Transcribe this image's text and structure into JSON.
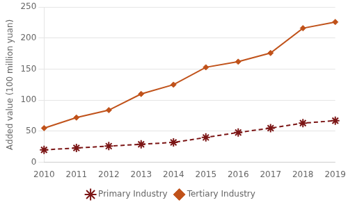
{
  "chart_data": {
    "type": "line",
    "categories": [
      "2010",
      "2011",
      "2012",
      "2013",
      "2014",
      "2015",
      "2016",
      "2017",
      "2018",
      "2019"
    ],
    "series": [
      {
        "name": "Primary Industry",
        "color": "#7B1515",
        "marker": "star",
        "line_style": "dashed",
        "values": [
          20,
          23,
          26,
          29,
          32,
          40,
          48,
          55,
          63,
          67
        ]
      },
      {
        "name": "Tertiary Industry",
        "color": "#C0521A",
        "marker": "diamond",
        "line_style": "solid",
        "values": [
          55,
          72,
          84,
          110,
          125,
          153,
          162,
          176,
          216,
          226
        ]
      }
    ],
    "ylabel": "Added value (100 million yuan)",
    "ylim": [
      0,
      250
    ],
    "yticks": [
      0,
      50,
      100,
      150,
      200,
      250
    ],
    "grid": "y",
    "legend": "bottom"
  }
}
